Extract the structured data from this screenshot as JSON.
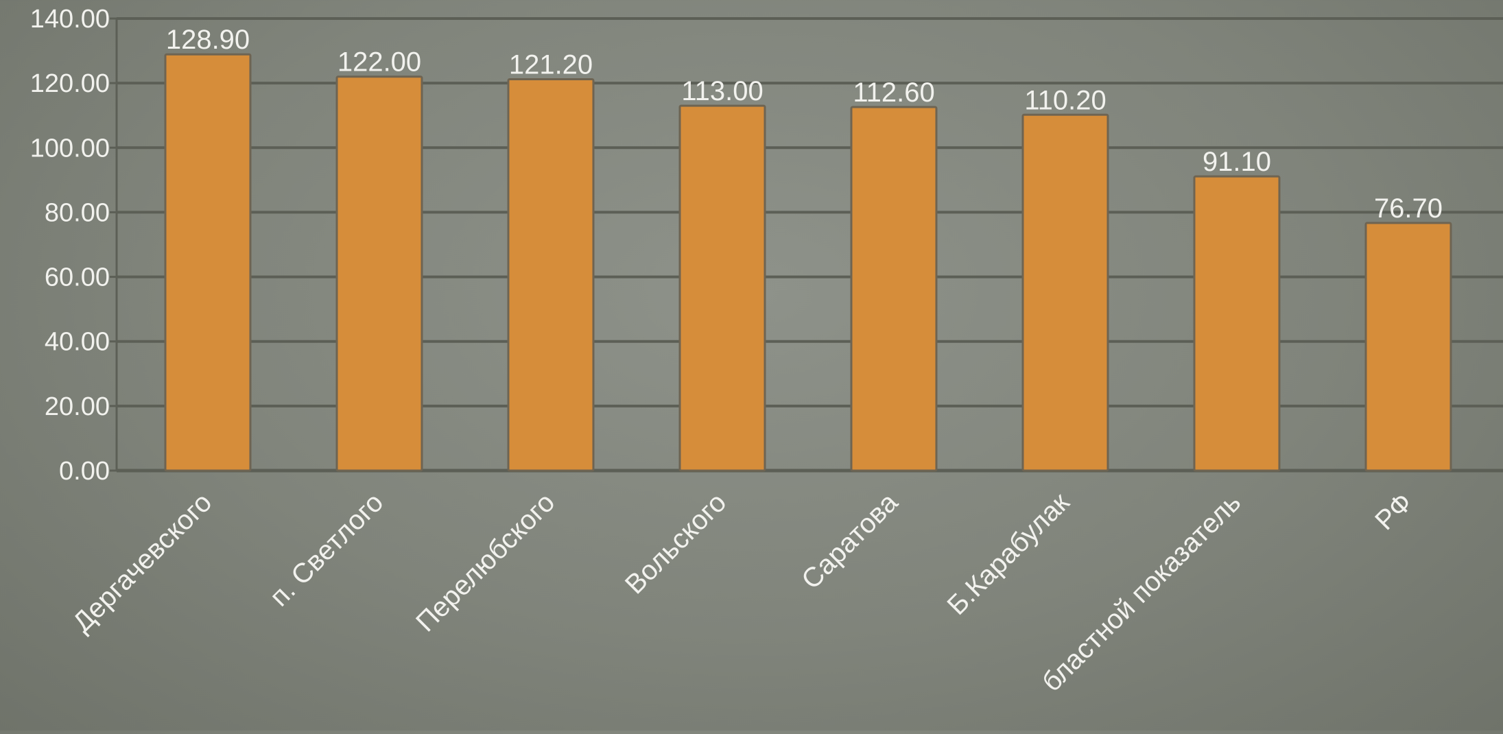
{
  "chart_data": {
    "type": "bar",
    "title": "",
    "xlabel": "",
    "ylabel": "",
    "categories": [
      "Дергачевского",
      "п. Светлого",
      "Перелюбского",
      "Вольского",
      "Саратова",
      "Б.Карабулак",
      "бластной показатель",
      "РФ"
    ],
    "values": [
      128.9,
      122.0,
      121.2,
      113.0,
      112.6,
      110.2,
      91.1,
      76.7
    ],
    "data_labels": [
      "128.90",
      "122.00",
      "121.20",
      "113.00",
      "112.60",
      "110.20",
      "91.10",
      "76.70"
    ],
    "yticks": [
      "0.00",
      "20.00",
      "40.00",
      "60.00",
      "80.00",
      "100.00",
      "120.00",
      "140.00"
    ],
    "ylim": [
      0,
      140
    ],
    "grid": true,
    "legend": "none",
    "colors": {
      "bar": "#d68d3a",
      "bar_edge": "#6e6452",
      "grid": "#5c5f56",
      "text": "#f2f2ee"
    }
  }
}
